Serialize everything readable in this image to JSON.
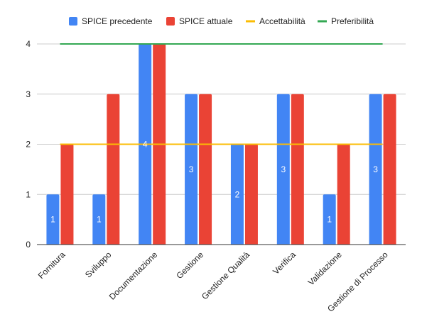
{
  "chart_data": {
    "type": "bar",
    "categories": [
      "Fornitura",
      "Sviluppo",
      "Documentazione",
      "Gestione",
      "Gestione Qualità",
      "Verifica",
      "Validazione",
      "Gestione di Processo"
    ],
    "series": [
      {
        "name": "SPICE precedente",
        "color": "#4285f4",
        "values": [
          1,
          1,
          4,
          3,
          2,
          3,
          1,
          3
        ],
        "labels": [
          "1",
          "1",
          "4",
          "3",
          "2",
          "3",
          "1",
          "3"
        ]
      },
      {
        "name": "SPICE attuale",
        "color": "#ea4335",
        "values": [
          2,
          3,
          4,
          3,
          2,
          3,
          2,
          3
        ]
      }
    ],
    "lines": [
      {
        "name": "Accettabilità",
        "color": "#fbbc04",
        "value": 2
      },
      {
        "name": "Preferibilità",
        "color": "#34a853",
        "value": 4
      }
    ],
    "ylim": [
      0,
      4
    ],
    "yticks": [
      "0",
      "1",
      "2",
      "3",
      "4"
    ],
    "grid": true,
    "legend_position": "top"
  }
}
